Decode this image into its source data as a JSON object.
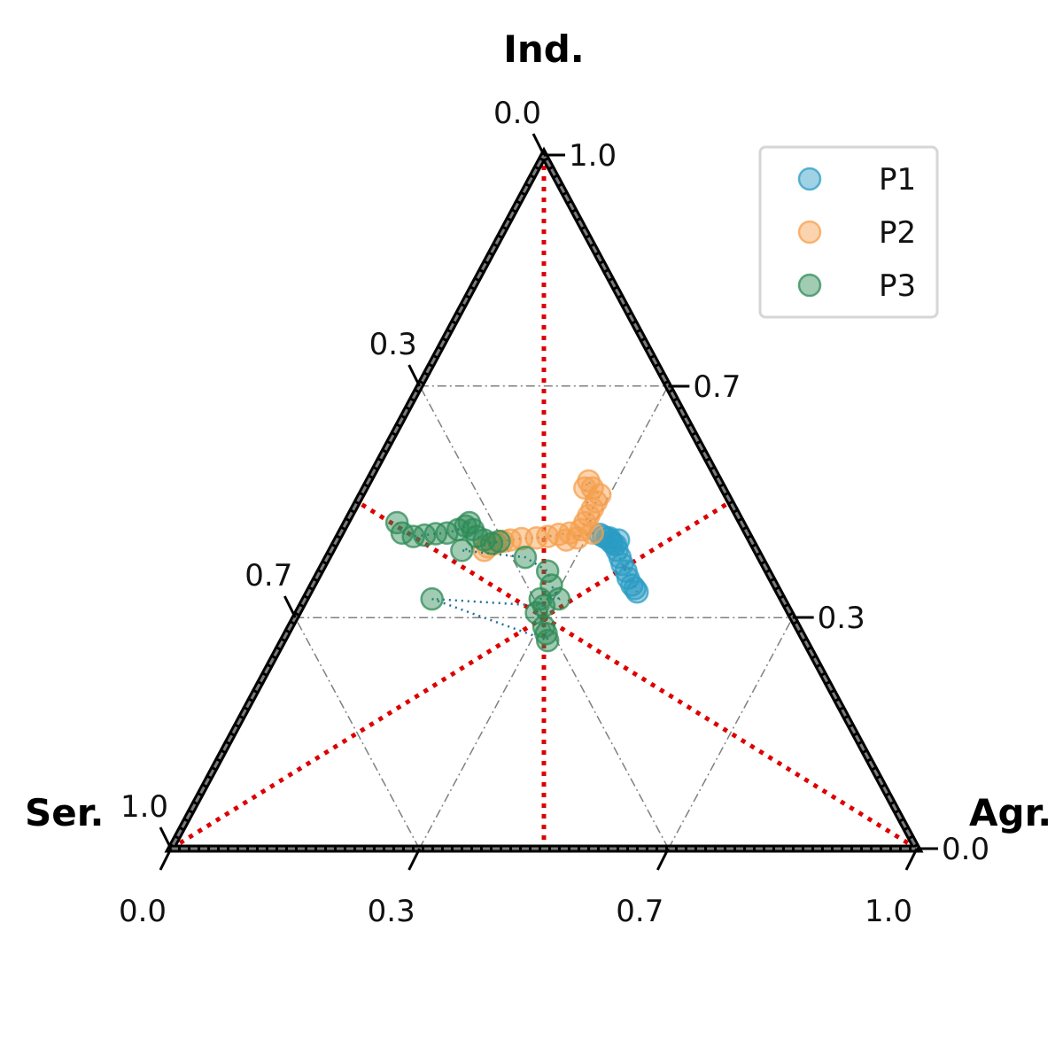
{
  "chart_data": {
    "type": "scatter",
    "subtype": "ternary",
    "axes": {
      "top": {
        "label": "Ind.",
        "ticks": [
          "0.0",
          "0.3",
          "0.7",
          "1.0"
        ],
        "right_ticks": [
          "1.0",
          "0.7",
          "0.3",
          "0.0"
        ]
      },
      "left": {
        "label": "Ser.",
        "ticks": [
          "0.0",
          "0.3",
          "0.7",
          "1.0"
        ]
      },
      "right": {
        "label": "Agr.",
        "ticks": [
          "0.0",
          "0.3",
          "0.7",
          "1.0"
        ]
      }
    },
    "bottom_ticks": [
      "0.0",
      "0.3",
      "0.7",
      "1.0"
    ],
    "grid": true,
    "grid_levels": [
      0.333,
      0.667
    ],
    "legend_position": "top-right",
    "colors": {
      "P1": "#2b9cc4",
      "P2": "#f6a04d",
      "P3": "#2e8b57",
      "reference": "#dd0000",
      "frame": "#000000",
      "grid": "#808080"
    },
    "series": [
      {
        "name": "P1",
        "points": [
          [
            0.58,
            0.45
          ],
          [
            0.575,
            0.453
          ],
          [
            0.585,
            0.447
          ],
          [
            0.59,
            0.443
          ],
          [
            0.592,
            0.44
          ],
          [
            0.596,
            0.438
          ],
          [
            0.598,
            0.43
          ],
          [
            0.602,
            0.42
          ],
          [
            0.605,
            0.41
          ],
          [
            0.61,
            0.4
          ],
          [
            0.613,
            0.39
          ],
          [
            0.618,
            0.38
          ],
          [
            0.622,
            0.375
          ],
          [
            0.625,
            0.37
          ],
          [
            0.6,
            0.445
          ],
          [
            0.588,
            0.448
          ]
        ]
      },
      {
        "name": "P2",
        "points": [
          [
            0.42,
            0.43
          ],
          [
            0.425,
            0.435
          ],
          [
            0.435,
            0.44
          ],
          [
            0.445,
            0.443
          ],
          [
            0.455,
            0.445
          ],
          [
            0.47,
            0.447
          ],
          [
            0.49,
            0.448
          ],
          [
            0.505,
            0.45
          ],
          [
            0.52,
            0.453
          ],
          [
            0.535,
            0.455
          ],
          [
            0.545,
            0.448
          ],
          [
            0.55,
            0.46
          ],
          [
            0.555,
            0.47
          ],
          [
            0.56,
            0.48
          ],
          [
            0.565,
            0.49
          ],
          [
            0.57,
            0.5
          ],
          [
            0.575,
            0.51
          ],
          [
            0.565,
            0.52
          ],
          [
            0.56,
            0.53
          ],
          [
            0.555,
            0.52
          ],
          [
            0.565,
            0.455
          ],
          [
            0.53,
            0.445
          ]
        ]
      },
      {
        "name": "P3",
        "points": [
          [
            0.303,
            0.47
          ],
          [
            0.31,
            0.455
          ],
          [
            0.325,
            0.45
          ],
          [
            0.34,
            0.452
          ],
          [
            0.355,
            0.454
          ],
          [
            0.37,
            0.455
          ],
          [
            0.385,
            0.46
          ],
          [
            0.395,
            0.465
          ],
          [
            0.4,
            0.47
          ],
          [
            0.405,
            0.46
          ],
          [
            0.41,
            0.45
          ],
          [
            0.42,
            0.445
          ],
          [
            0.43,
            0.44
          ],
          [
            0.44,
            0.443
          ],
          [
            0.39,
            0.43
          ],
          [
            0.475,
            0.42
          ],
          [
            0.505,
            0.4
          ],
          [
            0.51,
            0.38
          ],
          [
            0.52,
            0.36
          ],
          [
            0.495,
            0.36
          ],
          [
            0.49,
            0.34
          ],
          [
            0.5,
            0.32
          ],
          [
            0.503,
            0.31
          ],
          [
            0.505,
            0.3
          ],
          [
            0.35,
            0.36
          ],
          [
            0.5,
            0.35
          ]
        ]
      }
    ],
    "reference_point": [
      0.5,
      0.333
    ]
  }
}
